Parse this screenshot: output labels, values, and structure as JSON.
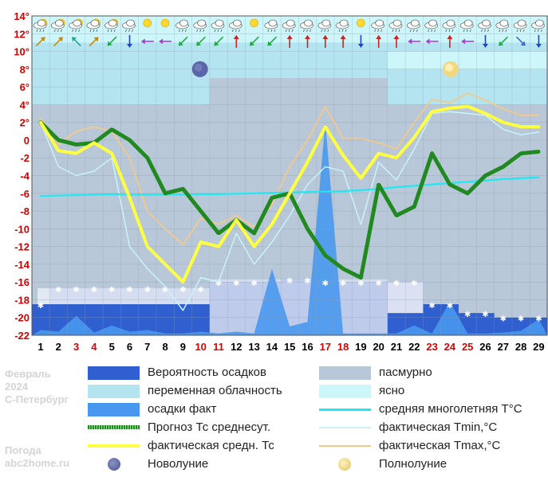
{
  "watermark": {
    "month": "Февраль",
    "year": "2024",
    "city": "С-Петербург",
    "site_title": "Погода",
    "site": "abc2home.ru"
  },
  "colors": {
    "background_overcast": "#b8c8d8",
    "background_partly": "#b4e4f0",
    "background_clear": "#ccf6fa",
    "precip_probability": "#3060d0",
    "precip_fact": "#4898f0",
    "forecast_mean": "#228822",
    "actual_mean": "#ffff40",
    "climate_mean": "#20e8f0",
    "actual_min": "#c8f4f8",
    "actual_max": "#f4c888",
    "snow": "#ffffff",
    "weekend": "#dd0000"
  },
  "chart_data": {
    "type": "line",
    "ylim": [
      -22,
      14
    ],
    "y_ticks": [
      "14°",
      "12°",
      "10°",
      "8°",
      "6°",
      "4°",
      "2°",
      "0",
      "-2",
      "-4",
      "-6",
      "-8",
      "-10",
      "-12",
      "-14",
      "-16",
      "-18",
      "-20",
      "-22"
    ],
    "x": [
      1,
      2,
      3,
      4,
      5,
      6,
      7,
      8,
      9,
      10,
      11,
      12,
      13,
      14,
      15,
      16,
      17,
      18,
      19,
      20,
      21,
      22,
      23,
      24,
      25,
      26,
      27,
      28,
      29
    ],
    "weekend_days": [
      3,
      4,
      10,
      11,
      17,
      18,
      23,
      24,
      25
    ],
    "new_moon_day": 10,
    "full_moon_day": 24,
    "series": [
      {
        "name": "Прогноз Тс среднесут.",
        "values": [
          2,
          0,
          -0.5,
          -0.3,
          1.2,
          0,
          -2,
          -6,
          -5.5,
          -8,
          -10.5,
          -9,
          -10.5,
          -6.5,
          -6,
          -10,
          -13,
          -14.5,
          -15.5,
          -5,
          -8.5,
          -7.5,
          -1.5,
          -5,
          -6,
          -4,
          -3,
          -1.5,
          -1.3
        ]
      },
      {
        "name": "фактическая средн. Тс",
        "values": [
          2,
          -1.2,
          -1.5,
          -0.3,
          -1.5,
          -6.5,
          -12,
          -14,
          -16,
          -11.5,
          -12,
          -9,
          -12,
          -9.5,
          -6,
          -2.5,
          1.5,
          -1.7,
          -4.3,
          -1.5,
          -2,
          0.3,
          3.2,
          3.6,
          3.8,
          3,
          2,
          1.5,
          1.5
        ]
      },
      {
        "name": "средняя многолетняя Т°С",
        "values": [
          -6.3,
          -6.25,
          -6.2,
          -6.15,
          -6.1,
          -6.15,
          -6.15,
          -6.15,
          -6.15,
          -6.1,
          -6.1,
          -6.05,
          -6,
          -5.95,
          -5.9,
          -5.85,
          -5.8,
          -5.75,
          -5.65,
          -5.5,
          -5.3,
          -5.15,
          -5,
          -4.85,
          -4.7,
          -4.55,
          -4.4,
          -4.3,
          -4.2
        ]
      },
      {
        "name": "фактическая Tmin,°C",
        "values": [
          2,
          -3,
          -4,
          -3.5,
          -2,
          -12,
          -14.5,
          -16.5,
          -19.2,
          -15.5,
          -16,
          -10.5,
          -14,
          -11.5,
          -8.5,
          -5,
          -3,
          -3.5,
          -9.5,
          -2.5,
          -4.5,
          -1,
          3,
          3.2,
          3,
          2.8,
          1.2,
          0.6,
          0.9
        ]
      },
      {
        "name": "фактическая Tmax,°C",
        "values": [
          2.5,
          -0.5,
          1,
          1.5,
          1,
          -2,
          -8,
          -10,
          -11.8,
          -8.8,
          -9.5,
          -8.5,
          -9.8,
          -7.3,
          -3,
          0,
          3.8,
          0.2,
          0.2,
          -0.3,
          -1,
          2,
          4.6,
          4.2,
          5.3,
          4.5,
          3.5,
          2.8,
          2.8
        ]
      }
    ],
    "precip_fact": [
      -21.4,
      -21.6,
      -19.8,
      -21.7,
      -20.9,
      -21.6,
      -21.4,
      -21.8,
      -21.8,
      -21.6,
      -21.8,
      -21.6,
      -21.8,
      -14.5,
      -21,
      -20.5,
      2,
      -21.8,
      -21.8,
      -21.8,
      -21.8,
      -20.9,
      -21.8,
      -18.2,
      -21.8,
      -21.8,
      -21.7,
      -21.5,
      -20.2
    ],
    "precip_probability": [
      -18.5,
      -16.7,
      -16.7,
      -16.7,
      -16.7,
      -16.7,
      -16.7,
      -16.7,
      -16.7,
      -16.7,
      -16,
      -16,
      -16,
      -16,
      -15.7,
      -15.7,
      -16,
      -16,
      -16,
      -16,
      -16,
      -16,
      -18.5,
      -18.5,
      -19.5,
      -19.5,
      -20,
      -20,
      -20
    ],
    "snow_days": [
      1,
      2,
      3,
      4,
      5,
      6,
      7,
      8,
      9,
      10,
      11,
      12,
      13,
      15,
      16,
      17,
      18,
      19,
      20,
      21,
      22,
      23,
      24,
      25,
      26,
      27,
      28,
      29
    ],
    "day_colors": [
      "#000",
      "#000",
      "#d00",
      "#d00",
      "#000",
      "#000",
      "#000",
      "#000",
      "#000",
      "#d00",
      "#d00",
      "#000",
      "#000",
      "#000",
      "#000",
      "#000",
      "#d00",
      "#d00",
      "#000",
      "#000",
      "#000",
      "#000",
      "#d00",
      "#d00",
      "#d00",
      "#000",
      "#000",
      "#000",
      "#000"
    ],
    "weather_icons": [
      "cloud-sun",
      "cloud-sun",
      "cloud-sun",
      "cloud-sun",
      "cloud-sun",
      "cloud",
      "sun",
      "sun",
      "cloud",
      "cloud",
      "cloud",
      "cloud",
      "sun",
      "cloud",
      "cloud",
      "cloud",
      "cloud",
      "cloud",
      "sun",
      "cloud",
      "cloud",
      "cloud",
      "cloud",
      "cloud",
      "cloud",
      "cloud",
      "cloud",
      "cloud",
      "cloud"
    ],
    "wind_arrows": [
      "ne",
      "ne",
      "nw",
      "ne",
      "sw",
      "s",
      "w",
      "w",
      "sw",
      "sw",
      "sw",
      "n",
      "sw",
      "sw",
      "n",
      "n",
      "n",
      "n",
      "s",
      "n",
      "n",
      "w",
      "w",
      "n",
      "w",
      "s",
      "sw",
      "se",
      "s"
    ]
  },
  "legend": [
    {
      "label": "Вероятность осадков"
    },
    {
      "label": "пасмурно"
    },
    {
      "label": "переменная облачность"
    },
    {
      "label": "ясно"
    },
    {
      "label": "осадки факт"
    },
    {
      "label": "средняя многолетняя Т°С"
    },
    {
      "label": "Прогноз Тс среднесут."
    },
    {
      "label": "фактическая Tmin,°C"
    },
    {
      "label": "фактическая средн. Тс"
    },
    {
      "label": "фактическая Tmax,°C"
    },
    {
      "label": "Новолуние"
    },
    {
      "label": "Полнолуние"
    }
  ]
}
